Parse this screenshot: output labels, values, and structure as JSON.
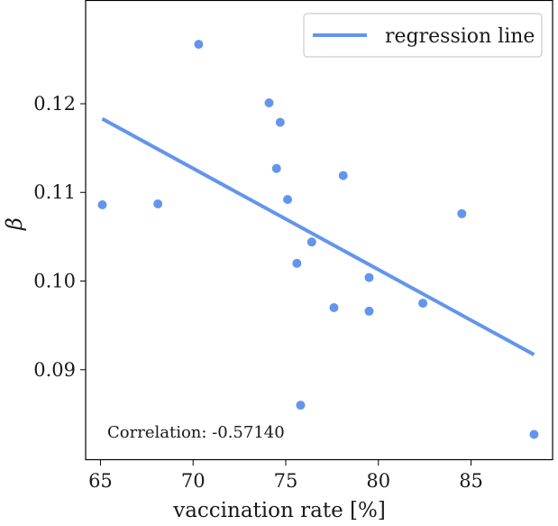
{
  "chart_data": {
    "type": "scatter",
    "xlabel": "vaccination rate [%]",
    "ylabel": "β",
    "xlim": [
      64.2,
      89.4
    ],
    "ylim": [
      0.0798,
      0.1316
    ],
    "xticks": [
      65,
      70,
      75,
      80,
      85
    ],
    "yticks": [
      0.09,
      0.1,
      0.11,
      0.12
    ],
    "xtick_labels": [
      "65",
      "70",
      "75",
      "80",
      "85"
    ],
    "ytick_labels": [
      "0.09",
      "0.10",
      "0.11",
      "0.12"
    ],
    "grid": false,
    "legend_position": "top-right",
    "point_color": "#6495ed",
    "line_color": "#6495ed",
    "series": [
      {
        "type": "scatter",
        "x": [
          65.1,
          68.1,
          70.3,
          74.1,
          74.5,
          74.7,
          75.1,
          75.6,
          75.8,
          76.4,
          77.6,
          78.1,
          79.5,
          79.5,
          82.4,
          84.5,
          88.4
        ],
        "y": [
          0.1086,
          0.1087,
          0.1267,
          0.1201,
          0.1127,
          0.1179,
          0.1092,
          0.102,
          0.086,
          0.1044,
          0.097,
          0.1119,
          0.1004,
          0.0966,
          0.0975,
          0.1076,
          0.0827
        ]
      },
      {
        "type": "line",
        "name": "regression line",
        "x": [
          65.1,
          88.4
        ],
        "y": [
          0.1183,
          0.0917
        ]
      }
    ],
    "annotation": "Correlation: -0.57140"
  }
}
